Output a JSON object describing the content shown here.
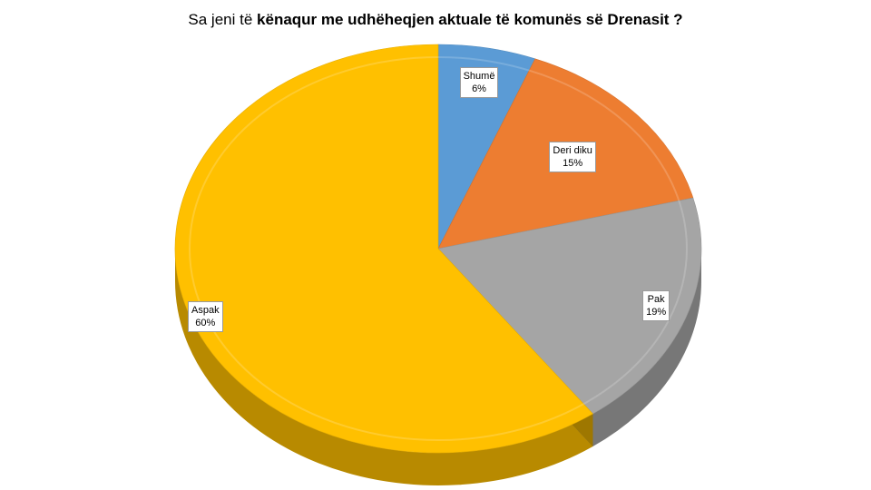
{
  "title": {
    "plain": "Sa jeni të",
    "bold": "kënaqur me udhëheqjen aktuale të komunës së Drenasit ?"
  },
  "chart_data": {
    "type": "pie",
    "style": "3d",
    "title": "Sa jeni të kënaqur me udhëheqjen aktuale të komunës së Drenasit ?",
    "legend": "none",
    "categories": [
      "Shumë",
      "Deri diku",
      "Pak",
      "Aspak"
    ],
    "values": [
      6,
      15,
      19,
      60
    ],
    "value_labels": [
      "6%",
      "15%",
      "19%",
      "60%"
    ],
    "colors": [
      "#5b9bd5",
      "#ed7d31",
      "#a5a5a5",
      "#ffc000"
    ]
  }
}
